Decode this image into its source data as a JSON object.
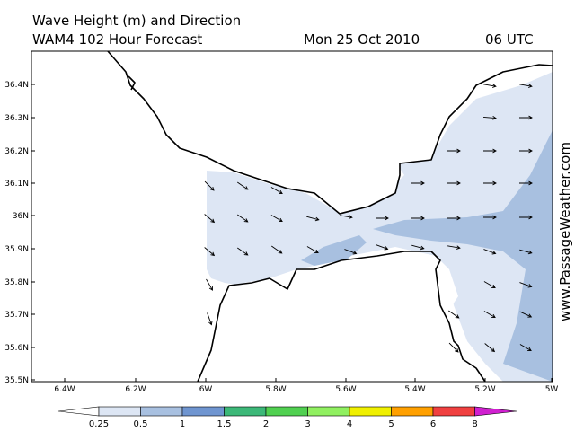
{
  "header": {
    "title": "Wave Height (m) and Direction",
    "forecast": "WAM4 102 Hour Forecast",
    "date": "Mon 25 Oct 2010",
    "time": "06 UTC"
  },
  "watermark": "www.PassageWeather.com",
  "lat_labels": [
    "36.4N",
    "36.3N",
    "36.2N",
    "36.1N",
    "36N",
    "35.9N",
    "35.8N",
    "35.7N",
    "35.6N",
    "35.5N"
  ],
  "lon_labels": [
    "6.4W",
    "6.2W",
    "6W",
    "5.8W",
    "5.6W",
    "5.4W",
    "5.2W",
    "5W"
  ],
  "colorbar": {
    "labels": [
      0.25,
      0.5,
      1,
      1.5,
      2,
      3,
      4,
      5,
      6,
      8
    ]
  }
}
